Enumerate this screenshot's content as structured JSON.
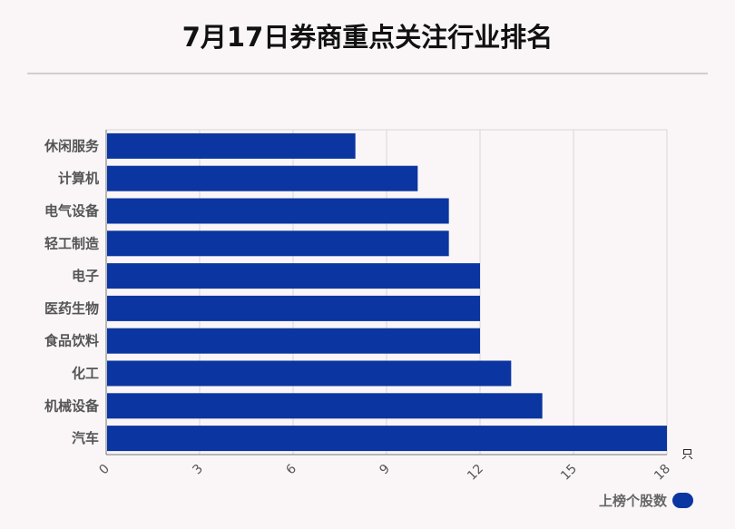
{
  "title": "7月17日券商重点关注行业排名",
  "unit": "只",
  "legend": {
    "label": "上榜个股数"
  },
  "colors": {
    "bar": "#0b35a0",
    "grid": "#d8d6d7",
    "axis": "#777777",
    "category_text": "#555555"
  },
  "chart_data": {
    "type": "bar",
    "orientation": "horizontal",
    "categories": [
      "休闲服务",
      "计算机",
      "电气设备",
      "轻工制造",
      "电子",
      "医药生物",
      "食品饮料",
      "化工",
      "机械设备",
      "汽车"
    ],
    "series": [
      {
        "name": "上榜个股数",
        "values": [
          8,
          10,
          11,
          11,
          12,
          12,
          12,
          13,
          14,
          18
        ]
      }
    ],
    "xlim": [
      0,
      18
    ],
    "xticks": [
      "0",
      "3",
      "6",
      "9",
      "12",
      "15",
      "18"
    ],
    "xlabel": "只",
    "ylabel": "",
    "grid": true,
    "legend_position": "bottom-right"
  }
}
